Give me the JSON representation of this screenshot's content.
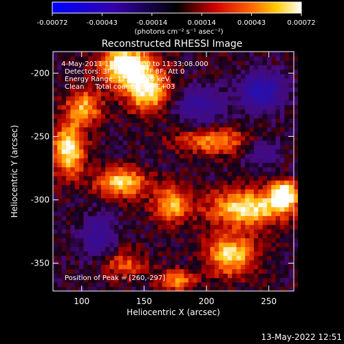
{
  "colorbar": {
    "ticks": [
      "-0.00072",
      "-0.00043",
      "-0.00014",
      "0.00014",
      "0.00043",
      "0.00072"
    ],
    "units": "(photons cm⁻² s⁻¹ asec⁻²)",
    "range": [
      -0.00072,
      0.00072
    ]
  },
  "chart_data": {
    "type": "heatmap",
    "title": "Reconstructed RHESSI Image",
    "xlabel": "Heliocentric X (arcsec)",
    "ylabel": "Heliocentric Y (arcsec)",
    "xlim": [
      77,
      270
    ],
    "ylim": [
      -372,
      -183
    ],
    "xticks": [
      100,
      150,
      200,
      250
    ],
    "yticks": [
      -200,
      -250,
      -300,
      -350
    ],
    "grid": false,
    "peak_position": [
      260,
      -297
    ],
    "blobs": [
      {
        "x": 133,
        "y": -195,
        "amp": 0.00072,
        "sx": 14,
        "sy": 10
      },
      {
        "x": 150,
        "y": -215,
        "amp": 0.0006,
        "sx": 12,
        "sy": 12
      },
      {
        "x": 100,
        "y": -228,
        "amp": 0.00045,
        "sx": 10,
        "sy": 10
      },
      {
        "x": 88,
        "y": -262,
        "amp": 0.00062,
        "sx": 9,
        "sy": 14
      },
      {
        "x": 130,
        "y": -288,
        "amp": 0.00055,
        "sx": 14,
        "sy": 8
      },
      {
        "x": 170,
        "y": -305,
        "amp": 0.00048,
        "sx": 10,
        "sy": 10
      },
      {
        "x": 232,
        "y": -308,
        "amp": 0.0006,
        "sx": 22,
        "sy": 10
      },
      {
        "x": 260,
        "y": -297,
        "amp": 0.00075,
        "sx": 7,
        "sy": 7
      },
      {
        "x": 218,
        "y": -345,
        "amp": 0.00055,
        "sx": 14,
        "sy": 11
      },
      {
        "x": 175,
        "y": -365,
        "amp": 0.0004,
        "sx": 10,
        "sy": 6
      },
      {
        "x": 205,
        "y": -255,
        "amp": 0.0004,
        "sx": 22,
        "sy": 7
      },
      {
        "x": 132,
        "y": -352,
        "amp": 0.0003,
        "sx": 12,
        "sy": 8
      },
      {
        "x": 243,
        "y": -215,
        "amp": -0.0005,
        "sx": 12,
        "sy": 10
      },
      {
        "x": 193,
        "y": -228,
        "amp": -0.0003,
        "sx": 14,
        "sy": 10
      },
      {
        "x": 112,
        "y": -330,
        "amp": -0.0003,
        "sx": 10,
        "sy": 12
      },
      {
        "x": 242,
        "y": -262,
        "amp": -0.00025,
        "sx": 10,
        "sy": 8
      }
    ]
  },
  "annotations": {
    "time_range": " 4-May-2011 11:30:40.000 to 11:33:08.000",
    "detectors": "Detectors: 3F 4F 5F 6F 7F 8F, Att 0",
    "energy": "Energy Range: 12.0 - 25.0 keV",
    "clean": "Clean     Total counts: 3.47E+03",
    "peak": "Position of Peak = [260,-297]"
  },
  "footer": {
    "date": "13-May-2022 12:51"
  }
}
